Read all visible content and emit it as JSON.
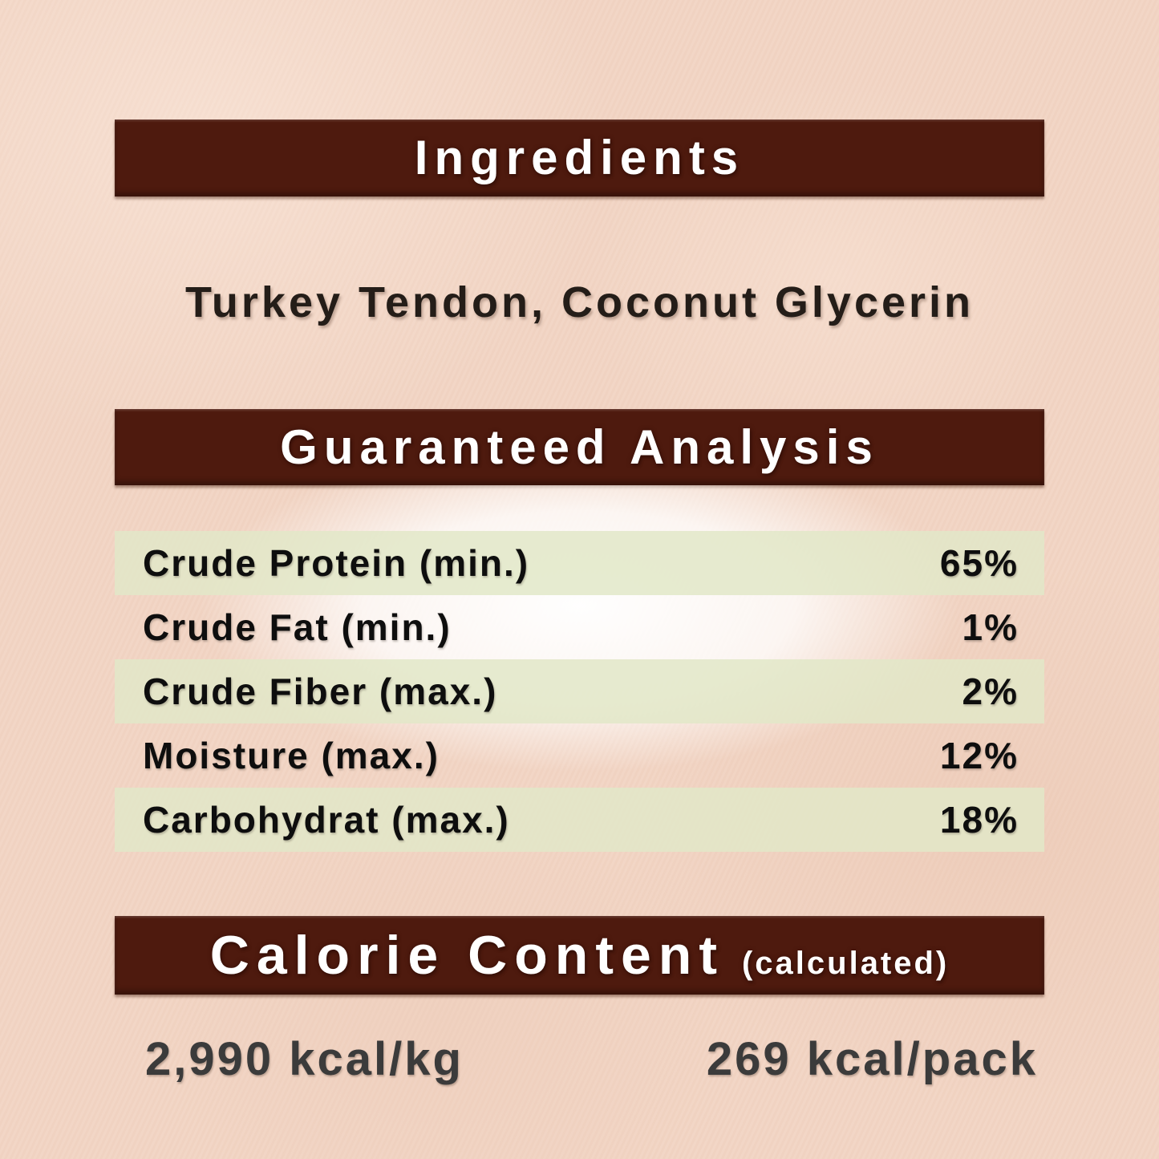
{
  "page": {
    "background_color": "#f2d5c4",
    "bar_color": "#4e1a0e",
    "band_color": "#e2e8c8"
  },
  "sections": {
    "ingredients": {
      "header": "Ingredients",
      "text": "Turkey Tendon, Coconut Glycerin"
    },
    "guaranteed_analysis": {
      "header": "Guaranteed Analysis",
      "rows": [
        {
          "label": "Crude Protein (min.)",
          "value": "65%"
        },
        {
          "label": "Crude Fat (min.)",
          "value": "1%"
        },
        {
          "label": "Crude Fiber (max.)",
          "value": "2%"
        },
        {
          "label": "Moisture (max.)",
          "value": "12%"
        },
        {
          "label": "Carbohydrat (max.)",
          "value": "18%"
        }
      ]
    },
    "calorie_content": {
      "header": "Calorie Content",
      "header_suffix": "(calculated)",
      "per_kg": "2,990 kcal/kg",
      "per_pack": "269 kcal/pack"
    }
  }
}
